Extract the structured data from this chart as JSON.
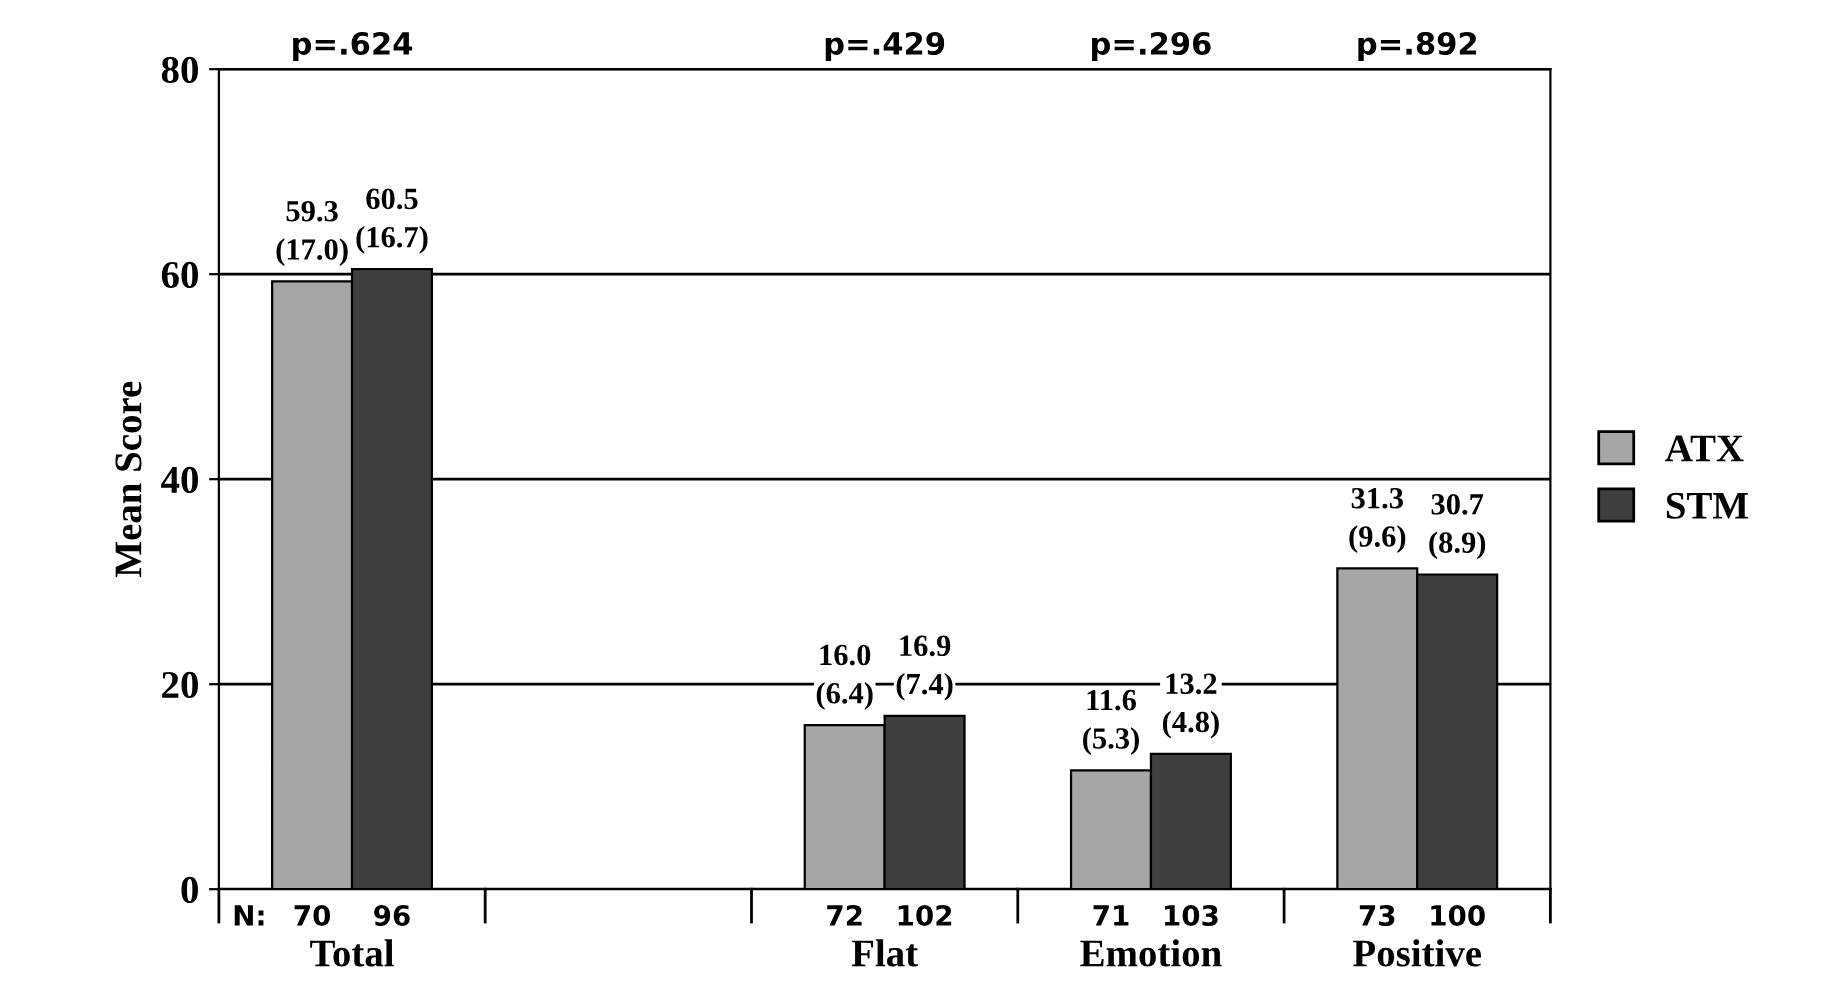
{
  "chart_data": {
    "type": "bar",
    "ylabel": "Mean Score",
    "categories": [
      "Total",
      null,
      "Flat",
      "Emotion",
      "Positive"
    ],
    "series": [
      {
        "name": "ATX",
        "color": "#a6a6a6",
        "values": [
          59.3,
          null,
          16.0,
          11.6,
          31.3
        ],
        "value_labels": [
          "59.3\n(17.0)",
          null,
          "16.0\n(6.4)",
          "11.6\n(5.3)",
          "31.3\n(9.6)"
        ]
      },
      {
        "name": "STM",
        "color": "#3f3f3f",
        "values": [
          60.5,
          null,
          16.9,
          13.2,
          30.7
        ],
        "value_labels": [
          "60.5\n(16.7)",
          null,
          "16.9\n(7.4)",
          "13.2\n(4.8)",
          "30.7\n(8.9)"
        ]
      }
    ],
    "ylim": [
      0,
      80
    ],
    "yticks": [
      0,
      20,
      40,
      60,
      80
    ],
    "grid": "y",
    "legend": "right",
    "annotations": [
      "p=.624",
      "p=.429",
      "p=.296",
      "p=.892",
      "N:",
      "70",
      "96",
      "72",
      "102",
      "71",
      "103",
      "73",
      "100"
    ]
  }
}
